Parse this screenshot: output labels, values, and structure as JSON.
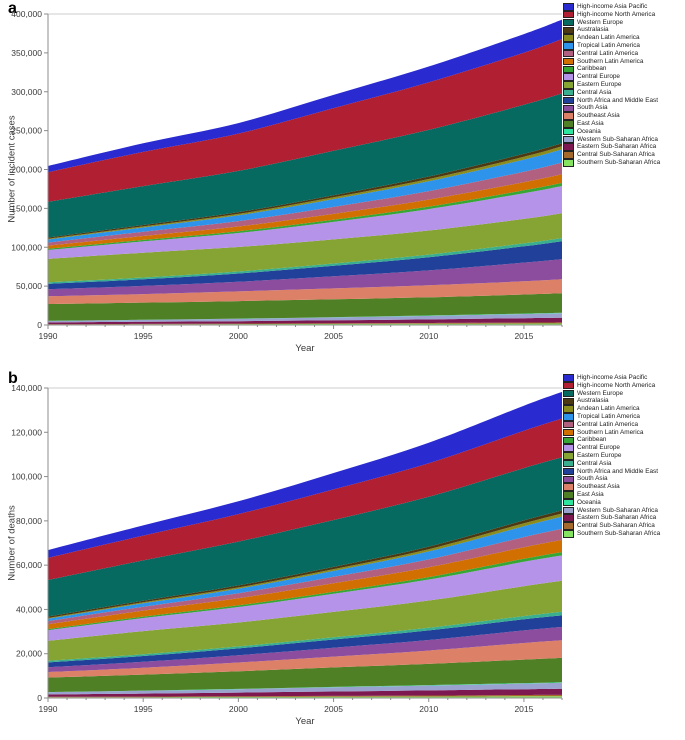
{
  "panels": [
    {
      "letter": "a"
    },
    {
      "letter": "b"
    }
  ],
  "regions": [
    {
      "label": "High-income Asia Pacific",
      "color": "#2a2ad1"
    },
    {
      "label": "High-income North America",
      "color": "#b11f33"
    },
    {
      "label": "Western Europe",
      "color": "#066a60"
    },
    {
      "label": "Australasia",
      "color": "#4d3814"
    },
    {
      "label": "Andean Latin America",
      "color": "#8a8c1e"
    },
    {
      "label": "Tropical Latin America",
      "color": "#2e93ea"
    },
    {
      "label": "Central Latin America",
      "color": "#b2607f"
    },
    {
      "label": "Southern Latin America",
      "color": "#d17000"
    },
    {
      "label": "Caribbean",
      "color": "#36a635"
    },
    {
      "label": "Central Europe",
      "color": "#b593e8"
    },
    {
      "label": "Eastern Europe",
      "color": "#85a433"
    },
    {
      "label": "Central Asia",
      "color": "#3aaf8f"
    },
    {
      "label": "North Africa and Middle East",
      "color": "#21409a"
    },
    {
      "label": "South Asia",
      "color": "#8d4d9e"
    },
    {
      "label": "Southeast Asia",
      "color": "#dc8168"
    },
    {
      "label": "East Asia",
      "color": "#4f8026"
    },
    {
      "label": "Oceania",
      "color": "#2ee5a0"
    },
    {
      "label": "Western Sub-Saharan Africa",
      "color": "#9aa3cf"
    },
    {
      "label": "Eastern Sub-Saharan Africa",
      "color": "#7d1950"
    },
    {
      "label": "Central Sub-Saharan Africa",
      "color": "#a5692c"
    },
    {
      "label": "Southern Sub-Saharan Africa",
      "color": "#86e362"
    }
  ],
  "chart_data": [
    {
      "panel": "a",
      "type": "area",
      "stacked": true,
      "stack_order": "bottom-to-top",
      "ylabel": "Number of incident cases",
      "xlabel": "Year",
      "ylim": [
        0,
        400000
      ],
      "ytick_step": 50000,
      "x": [
        1990,
        1995,
        2000,
        2005,
        2010,
        2015,
        2017
      ],
      "xticks": [
        1990,
        1995,
        2000,
        2005,
        2010,
        2015
      ],
      "series": [
        {
          "name": "Southern Sub-Saharan Africa",
          "values": [
            700,
            900,
            1100,
            1300,
            1500,
            1800,
            1900
          ]
        },
        {
          "name": "Central Sub-Saharan Africa",
          "values": [
            400,
            500,
            650,
            850,
            1050,
            1300,
            1400
          ]
        },
        {
          "name": "Eastern Sub-Saharan Africa",
          "values": [
            2200,
            2700,
            3200,
            3900,
            4700,
            5600,
            6000
          ]
        },
        {
          "name": "Western Sub-Saharan Africa",
          "values": [
            2000,
            2400,
            3000,
            3700,
            4500,
            5500,
            6000
          ]
        },
        {
          "name": "Oceania",
          "values": [
            200,
            250,
            300,
            350,
            420,
            500,
            520
          ]
        },
        {
          "name": "East Asia",
          "values": [
            21500,
            22000,
            22500,
            23000,
            23500,
            24500,
            25000
          ]
        },
        {
          "name": "Southeast Asia",
          "values": [
            10000,
            11000,
            12500,
            14000,
            15500,
            17000,
            18000
          ]
        },
        {
          "name": "South Asia",
          "values": [
            9000,
            10500,
            12500,
            15500,
            19000,
            24000,
            26000
          ]
        },
        {
          "name": "North Africa and Middle East",
          "values": [
            7000,
            8500,
            10500,
            13500,
            17000,
            21000,
            23000
          ]
        },
        {
          "name": "Central Asia",
          "values": [
            2000,
            2300,
            2600,
            3000,
            3400,
            3800,
            4000
          ]
        },
        {
          "name": "Eastern Europe",
          "values": [
            30000,
            32000,
            31500,
            31000,
            31000,
            31500,
            32000
          ]
        },
        {
          "name": "Central Europe",
          "values": [
            11500,
            14500,
            18000,
            22500,
            27500,
            33000,
            35000
          ]
        },
        {
          "name": "Caribbean",
          "values": [
            1500,
            1900,
            2300,
            2800,
            3200,
            3700,
            4000
          ]
        },
        {
          "name": "Southern Latin America",
          "values": [
            4000,
            5000,
            6000,
            7500,
            9000,
            10500,
            11000
          ]
        },
        {
          "name": "Central Latin America",
          "values": [
            4000,
            5500,
            7000,
            9000,
            11000,
            13500,
            15000
          ]
        },
        {
          "name": "Tropical Latin America",
          "values": [
            4000,
            5500,
            7500,
            10000,
            12500,
            15500,
            17000
          ]
        },
        {
          "name": "Andean Latin America",
          "values": [
            1000,
            1400,
            1800,
            2400,
            3000,
            3700,
            4000
          ]
        },
        {
          "name": "Australasia",
          "values": [
            1500,
            1800,
            2200,
            2700,
            3200,
            3800,
            4000
          ]
        },
        {
          "name": "Western Europe",
          "values": [
            46000,
            50000,
            53000,
            57000,
            60000,
            63000,
            64000
          ]
        },
        {
          "name": "High-income North America",
          "values": [
            38000,
            44000,
            48000,
            55000,
            61000,
            67000,
            70000
          ]
        },
        {
          "name": "High-income Asia Pacific",
          "values": [
            8000,
            11000,
            13500,
            17000,
            20500,
            24000,
            25000
          ]
        }
      ]
    },
    {
      "panel": "b",
      "type": "area",
      "stacked": true,
      "stack_order": "bottom-to-top",
      "ylabel": "Number of deaths",
      "xlabel": "Year",
      "ylim": [
        0,
        140000
      ],
      "ytick_step": 20000,
      "x": [
        1990,
        1995,
        2000,
        2005,
        2010,
        2015,
        2017
      ],
      "xticks": [
        1990,
        1995,
        2000,
        2005,
        2010,
        2015
      ],
      "series": [
        {
          "name": "Southern Sub-Saharan Africa",
          "values": [
            300,
            380,
            460,
            550,
            650,
            770,
            800
          ]
        },
        {
          "name": "Central Sub-Saharan Africa",
          "values": [
            220,
            270,
            330,
            400,
            480,
            570,
            600
          ]
        },
        {
          "name": "Eastern Sub-Saharan Africa",
          "values": [
            1100,
            1350,
            1650,
            2000,
            2300,
            2650,
            2800
          ]
        },
        {
          "name": "Western Sub-Saharan Africa",
          "values": [
            1000,
            1250,
            1550,
            1900,
            2200,
            2550,
            2700
          ]
        },
        {
          "name": "Oceania",
          "values": [
            80,
            100,
            120,
            150,
            180,
            210,
            220
          ]
        },
        {
          "name": "East Asia",
          "values": [
            6500,
            7200,
            8000,
            8800,
            9600,
            10600,
            11000
          ]
        },
        {
          "name": "Southeast Asia",
          "values": [
            2500,
            3100,
            3900,
            4900,
            6000,
            7500,
            8000
          ]
        },
        {
          "name": "South Asia",
          "values": [
            2200,
            2700,
            3300,
            4000,
            4800,
            5700,
            6000
          ]
        },
        {
          "name": "North Africa and Middle East",
          "values": [
            2200,
            2600,
            3100,
            3700,
            4300,
            5000,
            5200
          ]
        },
        {
          "name": "Central Asia",
          "values": [
            700,
            780,
            880,
            1000,
            1200,
            1450,
            1600
          ]
        },
        {
          "name": "Eastern Europe",
          "values": [
            9000,
            10500,
            10800,
            11500,
            12300,
            13500,
            14000
          ]
        },
        {
          "name": "Central Europe",
          "values": [
            4800,
            5900,
            7000,
            8200,
            9500,
            11000,
            11500
          ]
        },
        {
          "name": "Caribbean",
          "values": [
            500,
            620,
            760,
            920,
            1100,
            1380,
            1500
          ]
        },
        {
          "name": "Southern Latin America",
          "values": [
            2200,
            2700,
            3200,
            3800,
            4400,
            5200,
            5500
          ]
        },
        {
          "name": "Central Latin America",
          "values": [
            1400,
            1800,
            2300,
            2900,
            3600,
            4600,
            5000
          ]
        },
        {
          "name": "Tropical Latin America",
          "values": [
            1100,
            1500,
            2000,
            2700,
            3600,
            4900,
            5500
          ]
        },
        {
          "name": "Andean Latin America",
          "values": [
            350,
            450,
            600,
            780,
            1000,
            1300,
            1400
          ]
        },
        {
          "name": "Australasia",
          "values": [
            650,
            760,
            880,
            1000,
            1150,
            1330,
            1400
          ]
        },
        {
          "name": "Western Europe",
          "values": [
            16500,
            18200,
            19800,
            21200,
            22500,
            23600,
            24000
          ]
        },
        {
          "name": "High-income North America",
          "values": [
            10000,
            11200,
            12400,
            13800,
            15200,
            16900,
            17500
          ]
        },
        {
          "name": "High-income Asia Pacific",
          "values": [
            3500,
            4600,
            5800,
            7400,
            9200,
            11300,
            12000
          ]
        }
      ]
    }
  ]
}
